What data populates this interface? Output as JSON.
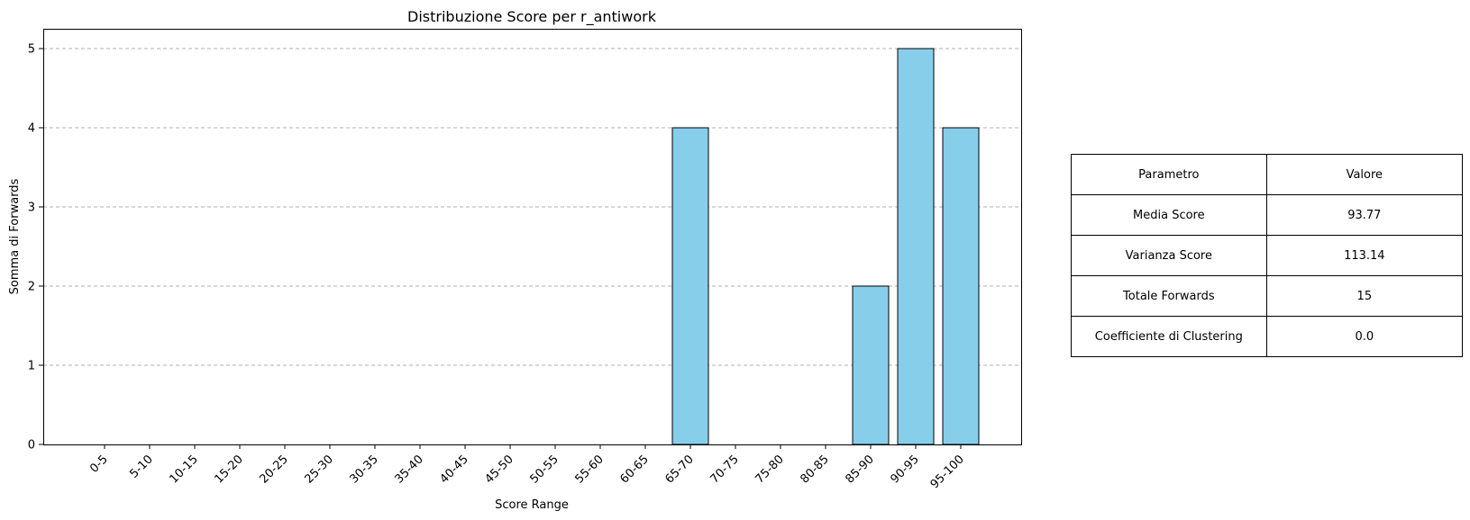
{
  "chart_data": {
    "type": "bar",
    "title": "Distribuzione Score per r_antiwork",
    "xlabel": "Score Range",
    "ylabel": "Somma di Forwards",
    "categories": [
      "0-5",
      "5-10",
      "10-15",
      "15-20",
      "20-25",
      "25-30",
      "30-35",
      "35-40",
      "40-45",
      "45-50",
      "50-55",
      "55-60",
      "60-65",
      "65-70",
      "70-75",
      "75-80",
      "80-85",
      "85-90",
      "90-95",
      "95-100"
    ],
    "values": [
      0,
      0,
      0,
      0,
      0,
      0,
      0,
      0,
      0,
      0,
      0,
      0,
      0,
      4,
      0,
      0,
      0,
      2,
      5,
      4
    ],
    "ylim": [
      0,
      5.25
    ],
    "yticks": [
      "0",
      "1",
      "2",
      "3",
      "4",
      "5"
    ],
    "grid": "y-dashed",
    "bar_color": "#87ceeb",
    "edge_color": "#000000",
    "legend": "none"
  },
  "table": {
    "header": [
      "Parametro",
      "Valore"
    ],
    "rows": [
      [
        "Media Score",
        "93.77"
      ],
      [
        "Varianza Score",
        "113.14"
      ],
      [
        "Totale Forwards",
        "15"
      ],
      [
        "Coefficiente di Clustering",
        "0.0"
      ]
    ]
  }
}
